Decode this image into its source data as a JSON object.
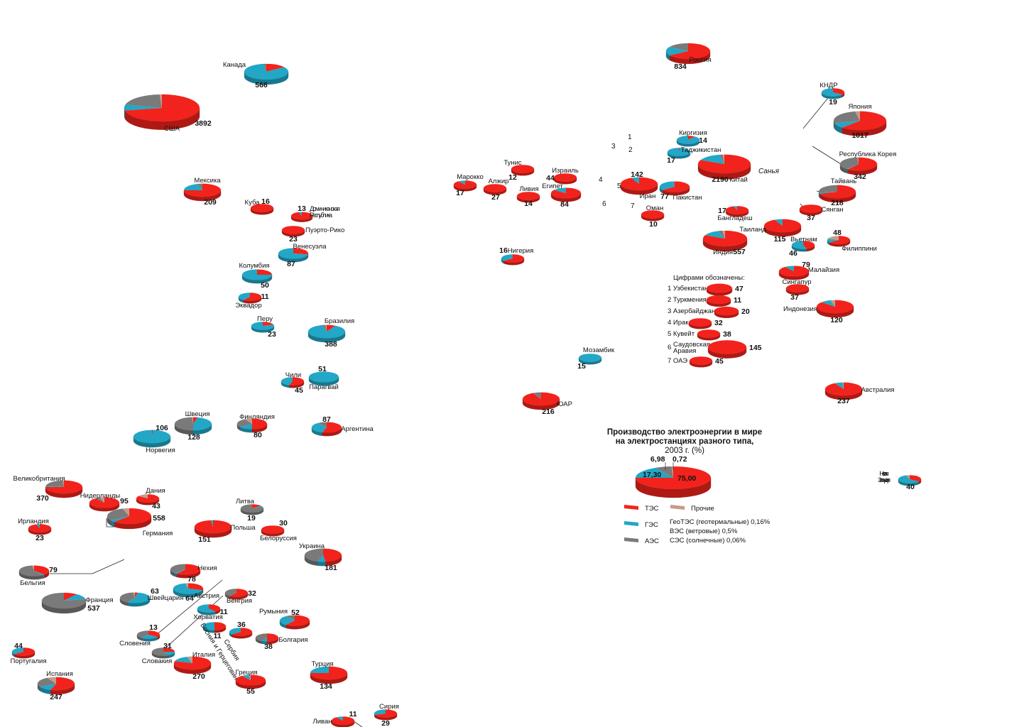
{
  "colors": {
    "thermal": "#f2231c",
    "hydro": "#22a7c6",
    "nuclear": "#7a7a7a",
    "other": "#c79a8a"
  },
  "countries": [
    {
      "name": "Канада",
      "value": "566",
      "mix": [
        0.15,
        0.83,
        0.02,
        0
      ]
    },
    {
      "name": "США",
      "value": "3892",
      "mix": [
        0.72,
        0.07,
        0.2,
        0.01
      ]
    },
    {
      "name": "Мексика",
      "value": "209",
      "mix": [
        0.75,
        0.2,
        0.05,
        0
      ]
    },
    {
      "name": "Куба",
      "value": "16",
      "mix": [
        1,
        0,
        0,
        0
      ]
    },
    {
      "name": "Доминиканская Республика",
      "value": "13",
      "mix": [
        0.95,
        0.05,
        0,
        0
      ]
    },
    {
      "name": "Пуэрто-Рико",
      "value": "23",
      "mix": [
        1,
        0,
        0,
        0
      ]
    },
    {
      "name": "Венесуэла",
      "value": "87",
      "mix": [
        0.28,
        0.72,
        0,
        0
      ]
    },
    {
      "name": "Колумбия",
      "value": "50",
      "mix": [
        0.25,
        0.75,
        0,
        0
      ]
    },
    {
      "name": "Эквадор",
      "value": "11",
      "mix": [
        0.6,
        0.4,
        0,
        0
      ]
    },
    {
      "name": "Перу",
      "value": "23",
      "mix": [
        0.2,
        0.8,
        0,
        0
      ]
    },
    {
      "name": "Бразилия",
      "value": "388",
      "mix": [
        0.08,
        0.88,
        0.03,
        0.01
      ]
    },
    {
      "name": "Чили",
      "value": "45",
      "mix": [
        0.55,
        0.45,
        0,
        0
      ]
    },
    {
      "name": "Парагвай",
      "value": "51",
      "mix": [
        0,
        1,
        0,
        0
      ]
    },
    {
      "name": "Аргентина",
      "value": "87",
      "mix": [
        0.55,
        0.35,
        0.1,
        0
      ]
    },
    {
      "name": "Норвегия",
      "value": "106",
      "mix": [
        0.01,
        0.99,
        0,
        0
      ]
    },
    {
      "name": "Швеция",
      "value": "128",
      "mix": [
        0.04,
        0.46,
        0.49,
        0.01
      ]
    },
    {
      "name": "Финляндия",
      "value": "80",
      "mix": [
        0.5,
        0.15,
        0.27,
        0.08
      ]
    },
    {
      "name": "Великобритания",
      "value": "370",
      "mix": [
        0.75,
        0.02,
        0.22,
        0.01
      ]
    },
    {
      "name": "Нидерланды",
      "value": "95",
      "mix": [
        0.9,
        0,
        0.05,
        0.05
      ]
    },
    {
      "name": "Дания",
      "value": "43",
      "mix": [
        0.85,
        0,
        0,
        0.15
      ]
    },
    {
      "name": "Германия",
      "value": "558",
      "mix": [
        0.62,
        0.04,
        0.29,
        0.05
      ]
    },
    {
      "name": "Ирландия",
      "value": "23",
      "mix": [
        0.95,
        0.05,
        0,
        0
      ]
    },
    {
      "name": "Литва",
      "value": "19",
      "mix": [
        0.15,
        0.05,
        0.8,
        0
      ]
    },
    {
      "name": "Польша",
      "value": "151",
      "mix": [
        0.98,
        0.02,
        0,
        0
      ]
    },
    {
      "name": "Белоруссия",
      "value": "30",
      "mix": [
        1,
        0,
        0,
        0
      ]
    },
    {
      "name": "Украина",
      "value": "181",
      "mix": [
        0.48,
        0.07,
        0.45,
        0
      ]
    },
    {
      "name": "Бельгия",
      "value": "79",
      "mix": [
        0.38,
        0.02,
        0.58,
        0.02
      ]
    },
    {
      "name": "Франция",
      "value": "537",
      "mix": [
        0.1,
        0.12,
        0.78,
        0
      ]
    },
    {
      "name": "Швейцария",
      "value": "63",
      "mix": [
        0.03,
        0.55,
        0.4,
        0.02
      ]
    },
    {
      "name": "Нехия",
      "value": "78",
      "mix": [
        0.6,
        0.03,
        0.37,
        0
      ]
    },
    {
      "name": "Австрия",
      "value": "64",
      "mix": [
        0.3,
        0.67,
        0,
        0.03
      ]
    },
    {
      "name": "Венгрия",
      "value": "32",
      "mix": [
        0.6,
        0,
        0.4,
        0
      ]
    },
    {
      "name": "Хорватия",
      "value": "11",
      "mix": [
        0.4,
        0.6,
        0,
        0
      ]
    },
    {
      "name": "Словения",
      "value": "13",
      "mix": [
        0.35,
        0.25,
        0.4,
        0
      ]
    },
    {
      "name": "Босния и Герцеговина",
      "value": "11",
      "mix": [
        0.5,
        0.5,
        0,
        0
      ]
    },
    {
      "name": "Сербия",
      "value": "36",
      "mix": [
        0.65,
        0.35,
        0,
        0
      ]
    },
    {
      "name": "Румыния",
      "value": "52",
      "mix": [
        0.6,
        0.3,
        0.1,
        0
      ]
    },
    {
      "name": "Болгария",
      "value": "38",
      "mix": [
        0.5,
        0.08,
        0.42,
        0
      ]
    },
    {
      "name": "Словакия",
      "value": "31",
      "mix": [
        0.25,
        0.17,
        0.58,
        0
      ]
    },
    {
      "name": "Португалия",
      "value": "44",
      "mix": [
        0.65,
        0.35,
        0,
        0
      ]
    },
    {
      "name": "Испания",
      "value": "247",
      "mix": [
        0.55,
        0.12,
        0.25,
        0.08
      ]
    },
    {
      "name": "Италия",
      "value": "270",
      "mix": [
        0.8,
        0.15,
        0,
        0.05
      ]
    },
    {
      "name": "Греция",
      "value": "55",
      "mix": [
        0.9,
        0.08,
        0,
        0.02
      ]
    },
    {
      "name": "Турция",
      "value": "134",
      "mix": [
        0.75,
        0.25,
        0,
        0
      ]
    },
    {
      "name": "Сирия",
      "value": "29",
      "mix": [
        0.7,
        0.3,
        0,
        0
      ]
    },
    {
      "name": "Ливан",
      "value": "11",
      "mix": [
        0.9,
        0.1,
        0,
        0
      ]
    },
    {
      "name": "Россия",
      "value": "834",
      "mix": [
        0.66,
        0.18,
        0.16,
        0
      ]
    },
    {
      "name": "Киргизия",
      "value": "14",
      "mix": [
        0.1,
        0.9,
        0,
        0
      ]
    },
    {
      "name": "Таджикистан",
      "value": "17",
      "mix": [
        0.02,
        0.98,
        0,
        0
      ]
    },
    {
      "name": "Китай",
      "value": "2190",
      "mix": [
        0.82,
        0.15,
        0.02,
        0.01
      ]
    },
    {
      "name": "Иран",
      "value": "142",
      "mix": [
        0.93,
        0.07,
        0,
        0
      ]
    },
    {
      "name": "Пакистан",
      "value": "77",
      "mix": [
        0.65,
        0.33,
        0.02,
        0
      ]
    },
    {
      "name": "Оман",
      "value": "10",
      "mix": [
        1,
        0,
        0,
        0
      ]
    },
    {
      "name": "Бангладеш",
      "value": "17",
      "mix": [
        0.95,
        0.05,
        0,
        0
      ]
    },
    {
      "name": "Таиланд",
      "value": "115",
      "mix": [
        0.93,
        0.07,
        0,
        0
      ]
    },
    {
      "name": "Индия",
      "value": "557",
      "mix": [
        0.82,
        0.13,
        0.03,
        0.02
      ]
    },
    {
      "name": "Вьетнам",
      "value": "46",
      "mix": [
        0.45,
        0.55,
        0,
        0
      ]
    },
    {
      "name": "Филиппини",
      "value": "48",
      "mix": [
        0.65,
        0.15,
        0,
        0.2
      ]
    },
    {
      "name": "Малайзия",
      "value": "79",
      "mix": [
        0.9,
        0.1,
        0,
        0
      ]
    },
    {
      "name": "Сингапур",
      "value": "37",
      "mix": [
        1,
        0,
        0,
        0
      ]
    },
    {
      "name": "Индонезия",
      "value": "120",
      "mix": [
        0.87,
        0.09,
        0,
        0.04
      ]
    },
    {
      "name": "Сянган",
      "value": "37",
      "mix": [
        1,
        0,
        0,
        0
      ]
    },
    {
      "name": "КНДР",
      "value": "19",
      "mix": [
        0.35,
        0.65,
        0,
        0
      ]
    },
    {
      "name": "Япония",
      "value": "1017",
      "mix": [
        0.62,
        0.09,
        0.26,
        0.03
      ]
    },
    {
      "name": "Республика Корея",
      "value": "342",
      "mix": [
        0.6,
        0.01,
        0.38,
        0.01
      ]
    },
    {
      "name": "Тайвань",
      "value": "218",
      "mix": [
        0.7,
        0.03,
        0.27,
        0
      ]
    },
    {
      "name": "Марокко",
      "value": "17",
      "mix": [
        0.9,
        0.1,
        0,
        0
      ]
    },
    {
      "name": "Алжир",
      "value": "27",
      "mix": [
        1,
        0,
        0,
        0
      ]
    },
    {
      "name": "Тунис",
      "value": "12",
      "mix": [
        1,
        0,
        0,
        0
      ]
    },
    {
      "name": "Ливия",
      "value": "14",
      "mix": [
        1,
        0,
        0,
        0
      ]
    },
    {
      "name": "Израиль",
      "value": "44",
      "mix": [
        1,
        0,
        0,
        0
      ]
    },
    {
      "name": "Египет",
      "value": "84",
      "mix": [
        0.85,
        0.15,
        0,
        0
      ]
    },
    {
      "name": "Нигерия",
      "value": "16",
      "mix": [
        0.65,
        0.35,
        0,
        0
      ]
    },
    {
      "name": "Мозамбик",
      "value": "15",
      "mix": [
        0,
        1,
        0,
        0
      ]
    },
    {
      "name": "ЮАР",
      "value": "216",
      "mix": [
        0.93,
        0.01,
        0.06,
        0
      ]
    },
    {
      "name": "Австралия",
      "value": "237",
      "mix": [
        0.92,
        0.07,
        0,
        0.01
      ]
    },
    {
      "name": "Новая Зеландия",
      "value": "40",
      "mix": [
        0.35,
        0.6,
        0,
        0.05
      ]
    }
  ],
  "map_markers": [
    "1",
    "2",
    "3",
    "4",
    "5",
    "6",
    "7"
  ],
  "region_label": "Санья",
  "numbered_legend": {
    "heading": "Цифрами обозначены:",
    "items": [
      {
        "num": "1",
        "name": "Узбекистан",
        "value": "47"
      },
      {
        "num": "2",
        "name": "Туркмения",
        "value": "11"
      },
      {
        "num": "3",
        "name": "Азербайджан",
        "value": "20"
      },
      {
        "num": "4",
        "name": "Ирак",
        "value": "32"
      },
      {
        "num": "5",
        "name": "Кувейт",
        "value": "38"
      },
      {
        "num": "6",
        "name": "Саудовская Аравия",
        "value": "145"
      },
      {
        "num": "7",
        "name": "ОАЭ",
        "value": "45"
      }
    ]
  },
  "summary": {
    "title_line1": "Производство электроэнергии в мире",
    "title_line2": "на электростанциях разного типа,",
    "title_line3": "2003 г. (%)",
    "thermal": "75,00",
    "hydro": "17,30",
    "nuclear": "6,98",
    "other": "0,72"
  },
  "legend": {
    "thermal": "ТЭС",
    "hydro": "ГЭС",
    "nuclear": "АЭС",
    "other": "Прочие",
    "notes": [
      "ГеоТЭС (геотермальные)  0,16%",
      "ВЭС (ветровые)     0,5%",
      "СЭС (солнечные)  0,06%"
    ]
  }
}
